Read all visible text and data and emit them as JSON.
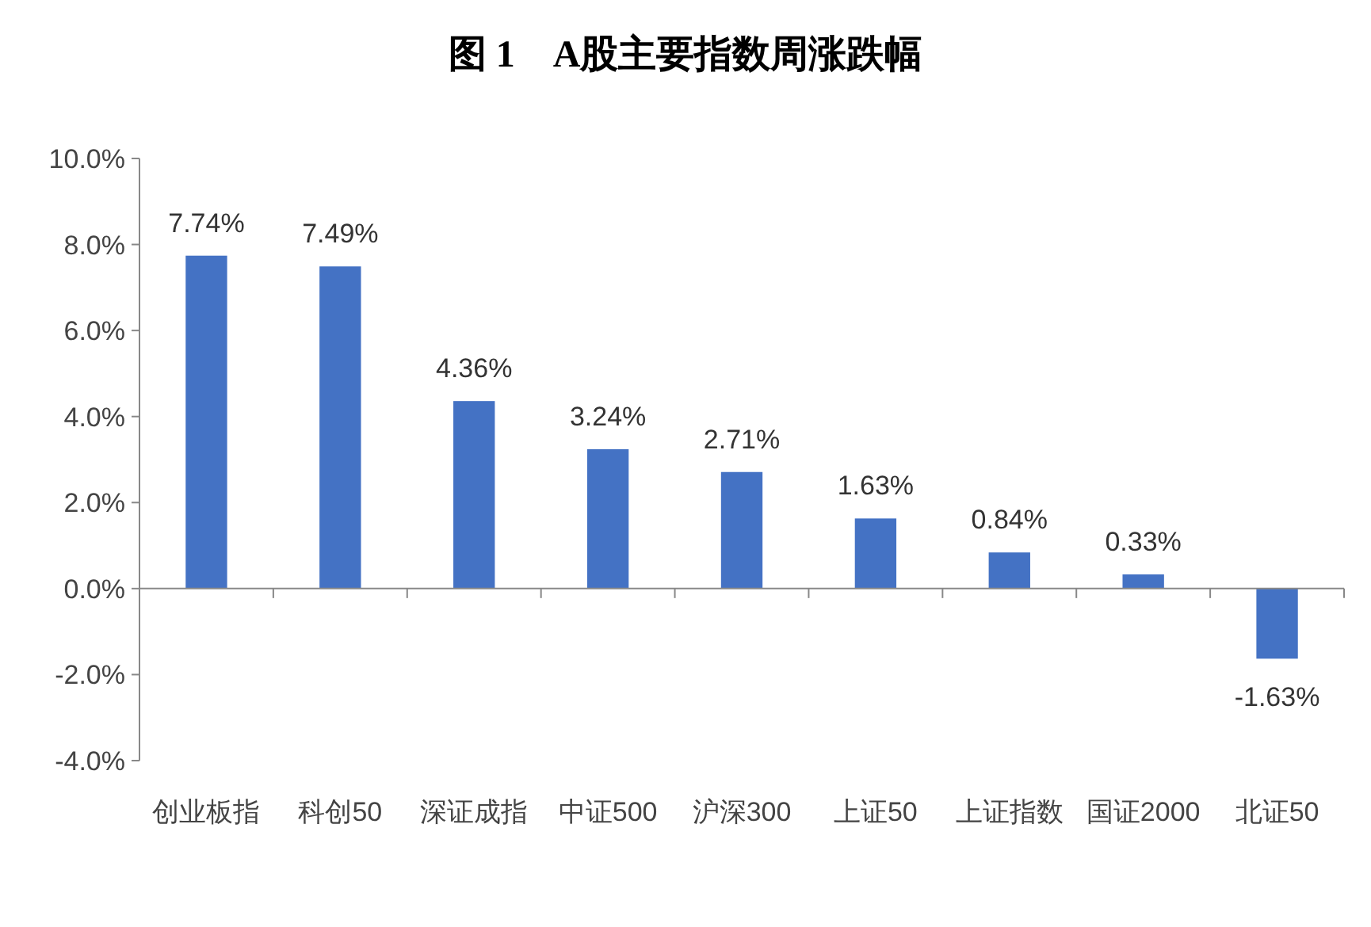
{
  "chart_data": {
    "type": "bar",
    "title": "图 1　A股主要指数周涨跌幅",
    "categories": [
      "创业板指",
      "科创50",
      "深证成指",
      "中证500",
      "沪深300",
      "上证50",
      "上证指数",
      "国证2000",
      "北证50"
    ],
    "values": [
      7.74,
      7.49,
      4.36,
      3.24,
      2.71,
      1.63,
      0.84,
      0.33,
      -1.63
    ],
    "value_labels": [
      "7.74%",
      "7.49%",
      "4.36%",
      "3.24%",
      "2.71%",
      "1.63%",
      "0.84%",
      "0.33%",
      "-1.63%"
    ],
    "color": "#4472c4",
    "ylim": [
      -4,
      10
    ],
    "yticks": [
      {
        "value": -4,
        "label": "-4.0%"
      },
      {
        "value": -2,
        "label": "-2.0%"
      },
      {
        "value": 0,
        "label": "0.0%"
      },
      {
        "value": 2,
        "label": "2.0%"
      },
      {
        "value": 4,
        "label": "4.0%"
      },
      {
        "value": 6,
        "label": "6.0%"
      },
      {
        "value": 8,
        "label": "8.0%"
      },
      {
        "value": 10,
        "label": "10.0%"
      }
    ]
  }
}
